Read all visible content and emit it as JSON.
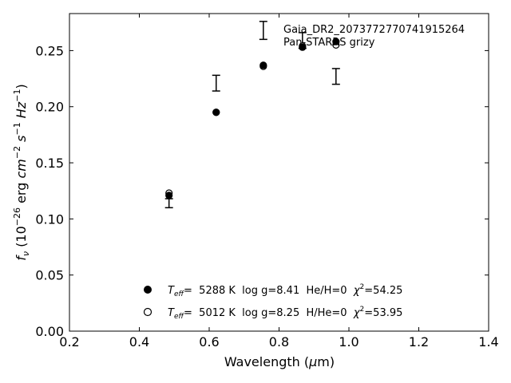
{
  "chart_data": {
    "type": "scatter",
    "xlabel": "Wavelength (μm)",
    "ylabel": "f_ν (10^-26 erg cm^-2 s^-1 Hz^-1)",
    "xlim": [
      0.2,
      1.4
    ],
    "ylim": [
      0.0,
      0.283
    ],
    "xticks": [
      "0.2",
      "0.4",
      "0.6",
      "0.8",
      "1.0",
      "1.2",
      "1.4"
    ],
    "yticks": [
      "0.00",
      "0.05",
      "0.10",
      "0.15",
      "0.20",
      "0.25"
    ],
    "annotation": {
      "line1": "Gaia_DR2_2073772770741915264",
      "line2": "Pan-STARRS grizy"
    },
    "observed": {
      "x": [
        0.485,
        0.62,
        0.755,
        0.867,
        0.963
      ],
      "y": [
        0.114,
        0.221,
        0.268,
        0.259,
        0.227
      ],
      "err": [
        0.004,
        0.007,
        0.008,
        0.007,
        0.007
      ]
    },
    "series": [
      {
        "label": "T_eff= 5288 K log g=8.41 He/H=0 χ²=54.25",
        "marker": "filled",
        "x": [
          0.485,
          0.62,
          0.755,
          0.867,
          0.963
        ],
        "y": [
          0.121,
          0.195,
          0.237,
          0.253,
          0.258
        ]
      },
      {
        "label": "T_eff= 5012 K log g=8.25 H/He=0 χ²=53.95",
        "marker": "open",
        "x": [
          0.485,
          0.62,
          0.755,
          0.867,
          0.963
        ],
        "y": [
          0.123,
          0.195,
          0.236,
          0.254,
          0.255
        ]
      }
    ],
    "legend_position": "bottom-center",
    "grid": false
  },
  "legend": {
    "teff_symbol": "T",
    "teff_sub": "eff",
    "entry1_eq": "=",
    "entry1_text": "  5288 K  log g=8.41  He/H=0  ",
    "entry1_chi": "χ",
    "entry1_chi_sup": "2",
    "entry1_chi_val": "=54.25",
    "entry2_eq": "=",
    "entry2_text": "  5012 K  log g=8.25  H/He=0  ",
    "entry2_chi": "χ",
    "entry2_chi_sup": "2",
    "entry2_chi_val": "=53.95"
  },
  "axes": {
    "xlabel_main": "Wavelength (",
    "xlabel_mu": "μ",
    "xlabel_unit": "m)",
    "ylabel_f": "f",
    "ylabel_nu": "ν",
    "ylabel_open": " (10",
    "ylabel_exp1": "−26",
    "ylabel_erg": " erg ",
    "ylabel_cm": "cm",
    "ylabel_exp2": "−2",
    "ylabel_s": " s",
    "ylabel_exp3": "−1",
    "ylabel_hz": " Hz",
    "ylabel_exp4": "−1",
    "ylabel_close": ")"
  },
  "colors": {
    "axis": "#000000",
    "marker": "#000000",
    "background": "#ffffff"
  }
}
